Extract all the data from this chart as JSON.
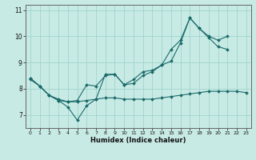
{
  "xlabel": "Humidex (Indice chaleur)",
  "ylabel": "",
  "xlim": [
    -0.5,
    23.5
  ],
  "ylim": [
    6.5,
    11.2
  ],
  "xticks": [
    0,
    1,
    2,
    3,
    4,
    5,
    6,
    7,
    8,
    9,
    10,
    11,
    12,
    13,
    14,
    15,
    16,
    17,
    18,
    19,
    20,
    21,
    22,
    23
  ],
  "yticks": [
    7,
    8,
    9,
    10,
    11
  ],
  "bg_color": "#c8eae4",
  "grid_color": "#a0d4ce",
  "line_color": "#1a6b6b",
  "series1_y": [
    8.4,
    8.1,
    7.75,
    7.55,
    7.3,
    6.8,
    7.35,
    7.6,
    8.55,
    8.55,
    8.15,
    8.2,
    8.5,
    8.65,
    8.9,
    9.05,
    9.75,
    10.7,
    10.3,
    10.0,
    9.85,
    10.0,
    null,
    null
  ],
  "series2_y": [
    8.4,
    8.1,
    7.75,
    7.6,
    7.5,
    7.55,
    8.15,
    8.1,
    8.5,
    8.55,
    8.15,
    8.35,
    8.65,
    8.7,
    8.9,
    9.5,
    9.85,
    10.7,
    10.3,
    9.95,
    9.6,
    9.5,
    null,
    null
  ],
  "series3_y": [
    8.35,
    8.1,
    7.75,
    7.55,
    7.5,
    7.5,
    7.55,
    7.6,
    7.65,
    7.65,
    7.6,
    7.6,
    7.6,
    7.6,
    7.65,
    7.7,
    7.75,
    7.8,
    7.85,
    7.9,
    7.9,
    7.9,
    7.9,
    7.85
  ]
}
